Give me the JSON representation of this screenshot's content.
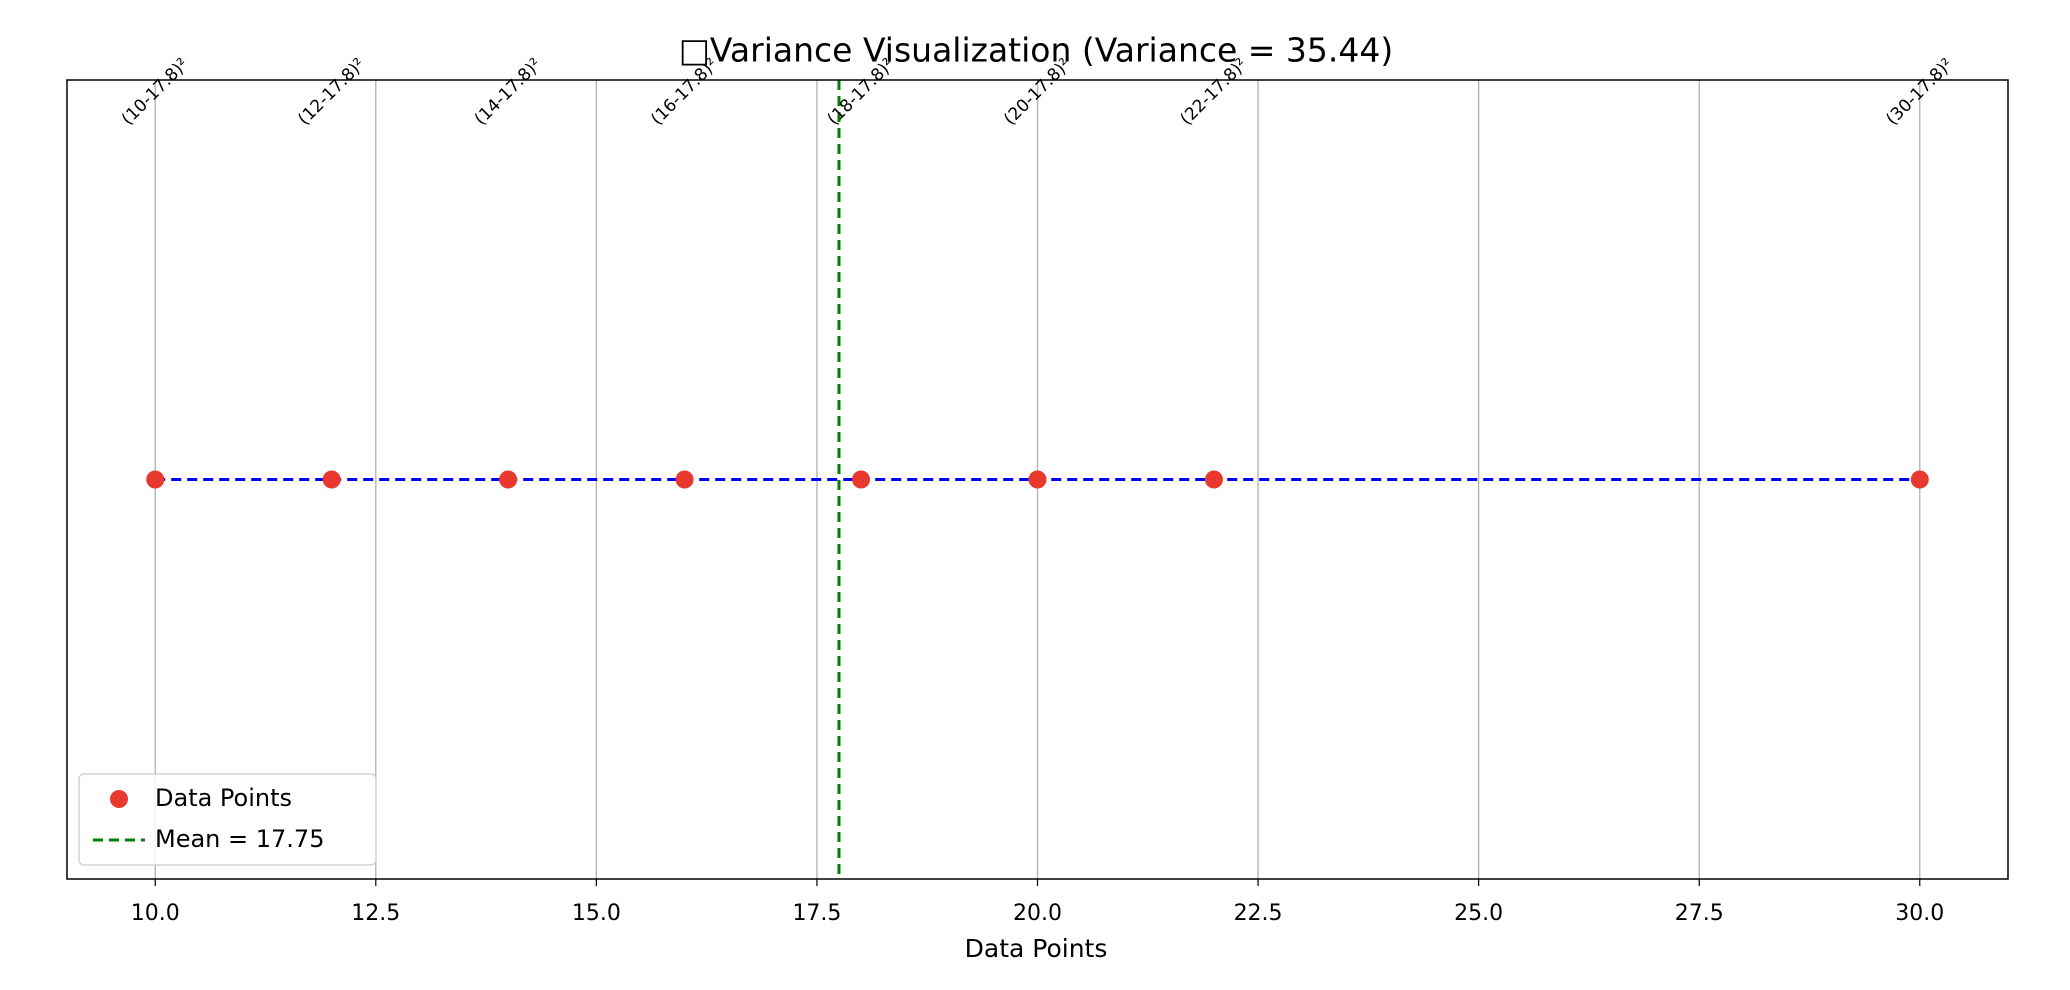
{
  "chart_data": {
    "type": "scatter",
    "title": "□Variance Visualization (Variance = 35.44)",
    "xlabel": "Data Points",
    "series": [
      {
        "name": "Data Points",
        "color": "#e8392f",
        "x": [
          10,
          12,
          14,
          16,
          18,
          20,
          22,
          30
        ],
        "values": [
          0,
          0,
          0,
          0,
          0,
          0,
          0,
          0
        ]
      }
    ],
    "connect_line_color": "blue",
    "annotations": [
      "(10-17.8)²",
      "(12-17.8)²",
      "(14-17.8)²",
      "(16-17.8)²",
      "(18-17.8)²",
      "(20-17.8)²",
      "(22-17.8)²",
      "(30-17.8)²"
    ],
    "mean_line": {
      "name": "Mean = 17.75",
      "value": 17.75,
      "color": "green"
    },
    "xlim": [
      9,
      31
    ],
    "xticks": [
      {
        "value": 10,
        "label": "10.0"
      },
      12.5,
      {
        "value": 15,
        "label": "15.0"
      },
      17.5,
      {
        "value": 20,
        "label": "20.0"
      },
      22.5,
      {
        "value": 25,
        "label": "25.0"
      },
      27.5,
      {
        "value": 30,
        "label": "30.0"
      }
    ],
    "ylim": [
      -1,
      1
    ],
    "grid": true,
    "legend": "lower left"
  }
}
